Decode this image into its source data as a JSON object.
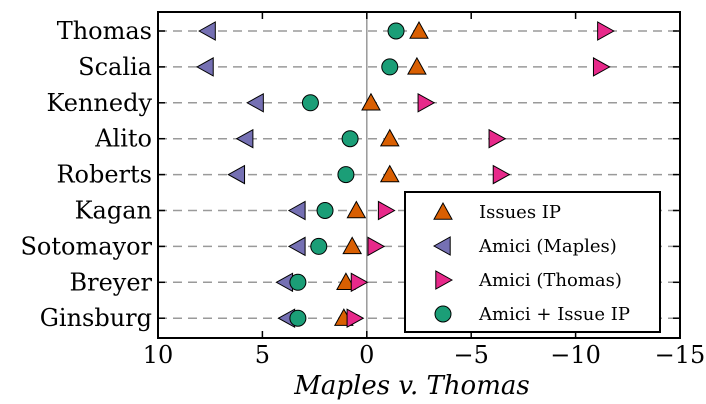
{
  "chart_data": {
    "type": "scatter",
    "title": "",
    "xlabel": "Maples v. Thomas",
    "ylabel": "",
    "xlim": [
      10,
      -15
    ],
    "x_axis_reversed": true,
    "x_ticks": [
      10,
      5,
      0,
      -5,
      -10,
      -15
    ],
    "x_tick_labels": [
      "10",
      "5",
      "0",
      "−5",
      "−10",
      "−15"
    ],
    "categories": [
      "Thomas",
      "Scalia",
      "Kennedy",
      "Alito",
      "Roberts",
      "Kagan",
      "Sotomayor",
      "Breyer",
      "Ginsburg"
    ],
    "grid": "dashed horizontal lines per category",
    "zero_line": true,
    "legend_placement": "lower-right",
    "series": [
      {
        "name": "Issues IP",
        "marker": "triangle-up",
        "color": "#d95f02",
        "values": [
          -2.5,
          -2.4,
          -0.2,
          -1.1,
          -1.1,
          0.5,
          0.7,
          1.0,
          1.1
        ]
      },
      {
        "name": "Amici (Maples)",
        "marker": "triangle-left",
        "color": "#7570b3",
        "values": [
          7.6,
          7.7,
          5.3,
          5.8,
          6.2,
          3.3,
          3.3,
          3.9,
          3.8
        ]
      },
      {
        "name": "Amici (Thomas)",
        "marker": "triangle-right",
        "color": "#e7298a",
        "values": [
          -11.4,
          -11.2,
          -2.8,
          -6.2,
          -6.4,
          -0.9,
          -0.4,
          0.4,
          0.6
        ]
      },
      {
        "name": "Amici + Issue IP",
        "marker": "circle",
        "color": "#1b9e77",
        "values": [
          -1.4,
          -1.1,
          2.7,
          0.8,
          1.0,
          2.0,
          2.3,
          3.3,
          3.3
        ]
      }
    ]
  }
}
